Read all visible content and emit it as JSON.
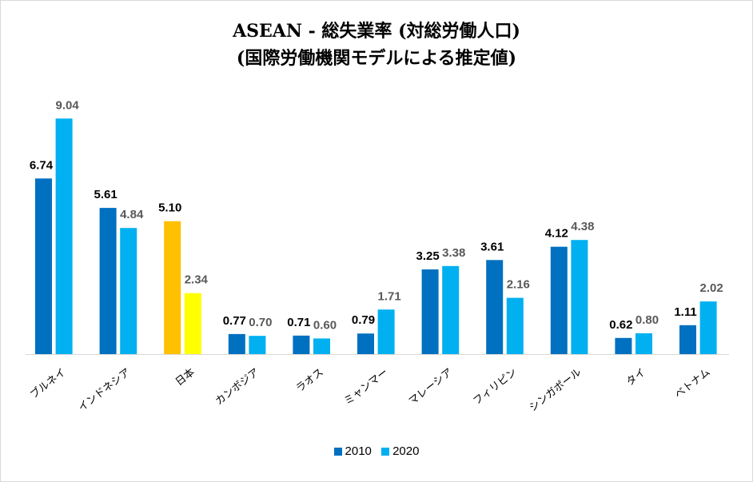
{
  "chart_data": {
    "type": "bar",
    "title_line1": "ASEAN - 総失業率 (対総労働人口)",
    "title_line2": "(国際労働機関モデルによる推定値)",
    "categories": [
      "ブルネイ",
      "インドネシア",
      "日本",
      "カンボジア",
      "ラオス",
      "ミャンマー",
      "マレーシア",
      "フィリピン",
      "シンガポール",
      "タイ",
      "ベトナム"
    ],
    "series": [
      {
        "name": "2010",
        "values": [
          6.74,
          5.61,
          5.1,
          0.77,
          0.71,
          0.79,
          3.25,
          3.61,
          4.12,
          0.62,
          1.11
        ]
      },
      {
        "name": "2020",
        "values": [
          9.04,
          4.84,
          2.34,
          0.7,
          0.6,
          1.71,
          3.38,
          2.16,
          4.38,
          0.8,
          2.02
        ]
      }
    ],
    "colors": {
      "2010": "#0070c0",
      "2020": "#00b0f0",
      "japan_2010": "#ffc000",
      "japan_2020": "#ffff00"
    },
    "label_colors": {
      "2010": "#000000",
      "2020": "#595959"
    },
    "highlight_category": "日本",
    "ylim": [
      0,
      10
    ],
    "grid": false,
    "legend_position": "bottom"
  }
}
